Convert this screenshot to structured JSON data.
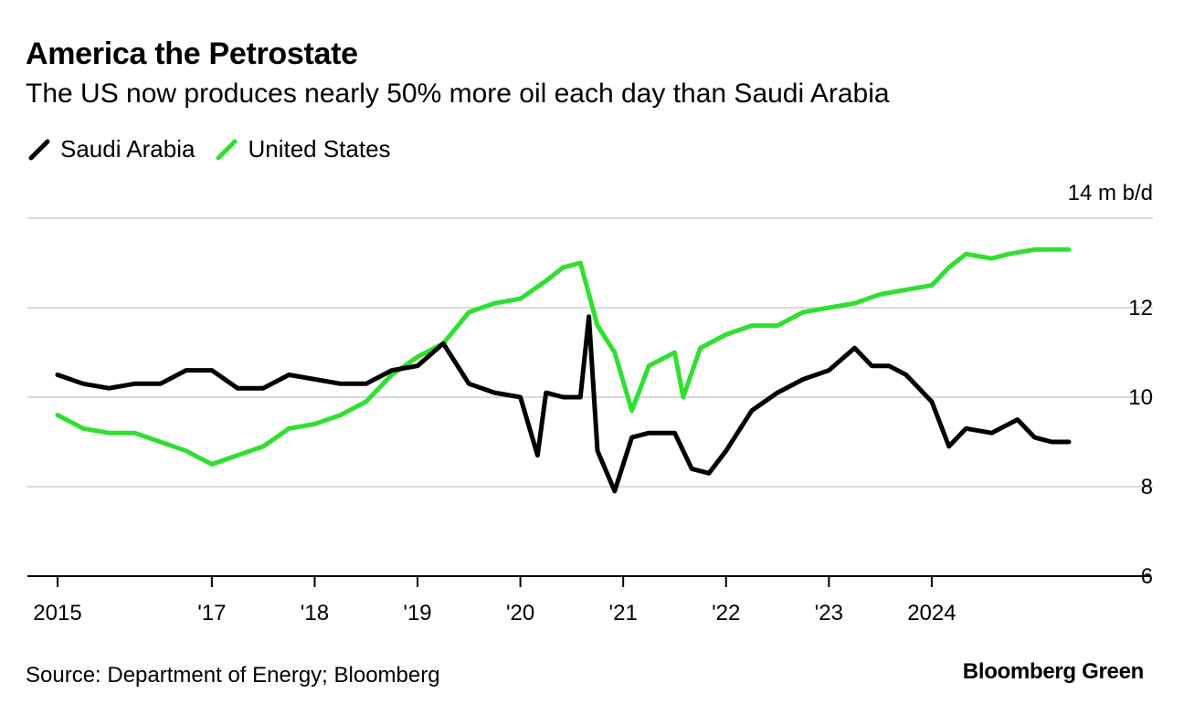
{
  "header": {
    "title": "America the Petrostate",
    "subtitle": "The US now produces nearly 50% more oil each day than Saudi Arabia"
  },
  "legend": [
    {
      "name": "Saudi Arabia",
      "color": "#000000"
    },
    {
      "name": "United States",
      "color": "#2fe031"
    }
  ],
  "footer": {
    "source": "Source: Department of Energy; Bloomberg",
    "brand": "Bloomberg Green"
  },
  "chart_data": {
    "type": "line",
    "title": "America the Petrostate",
    "subtitle": "The US now produces nearly 50% more oil each day than Saudi Arabia",
    "ylabel": "14 m b/d",
    "ylim": [
      6,
      14
    ],
    "yticks": [
      6,
      8,
      10,
      12
    ],
    "ytick_labels": [
      "6",
      "8",
      "10",
      "12"
    ],
    "xlim": [
      "2015-01",
      "2024-12"
    ],
    "xticks": [
      "2015-01",
      "2016-07",
      "2017-07",
      "2018-07",
      "2019-07",
      "2020-07",
      "2021-07",
      "2022-07",
      "2023-07"
    ],
    "xtick_labels": [
      "2015",
      "'17",
      "'18",
      "'19",
      "'20",
      "'21",
      "'22",
      "'23",
      "2024"
    ],
    "grid": true,
    "legend_position": "top-left",
    "series": [
      {
        "name": "Saudi Arabia",
        "color": "#000000",
        "points": [
          [
            "2015-01",
            10.5
          ],
          [
            "2015-04",
            10.3
          ],
          [
            "2015-07",
            10.2
          ],
          [
            "2015-10",
            10.3
          ],
          [
            "2016-01",
            10.3
          ],
          [
            "2016-04",
            10.6
          ],
          [
            "2016-07",
            10.6
          ],
          [
            "2016-10",
            10.2
          ],
          [
            "2017-01",
            10.2
          ],
          [
            "2017-04",
            10.5
          ],
          [
            "2017-07",
            10.4
          ],
          [
            "2017-10",
            10.3
          ],
          [
            "2018-01",
            10.3
          ],
          [
            "2018-04",
            10.6
          ],
          [
            "2018-07",
            10.7
          ],
          [
            "2018-10",
            11.2
          ],
          [
            "2019-01",
            10.3
          ],
          [
            "2019-04",
            10.1
          ],
          [
            "2019-07",
            10.0
          ],
          [
            "2019-09",
            8.7
          ],
          [
            "2019-10",
            10.1
          ],
          [
            "2019-12",
            10.0
          ],
          [
            "2020-02",
            10.0
          ],
          [
            "2020-03",
            11.8
          ],
          [
            "2020-04",
            8.8
          ],
          [
            "2020-06",
            7.9
          ],
          [
            "2020-08",
            9.1
          ],
          [
            "2020-10",
            9.2
          ],
          [
            "2021-01",
            9.2
          ],
          [
            "2021-03",
            8.4
          ],
          [
            "2021-05",
            8.3
          ],
          [
            "2021-07",
            8.8
          ],
          [
            "2021-10",
            9.7
          ],
          [
            "2022-01",
            10.1
          ],
          [
            "2022-04",
            10.4
          ],
          [
            "2022-07",
            10.6
          ],
          [
            "2022-10",
            11.1
          ],
          [
            "2022-12",
            10.7
          ],
          [
            "2023-02",
            10.7
          ],
          [
            "2023-04",
            10.5
          ],
          [
            "2023-07",
            9.9
          ],
          [
            "2023-09",
            8.9
          ],
          [
            "2023-11",
            9.3
          ],
          [
            "2024-02",
            9.2
          ],
          [
            "2024-05",
            9.5
          ],
          [
            "2024-07",
            9.1
          ],
          [
            "2024-09",
            9.0
          ],
          [
            "2024-11",
            9.0
          ]
        ]
      },
      {
        "name": "United States",
        "color": "#2fe031",
        "points": [
          [
            "2015-01",
            9.6
          ],
          [
            "2015-04",
            9.3
          ],
          [
            "2015-07",
            9.2
          ],
          [
            "2015-10",
            9.2
          ],
          [
            "2016-01",
            9.0
          ],
          [
            "2016-04",
            8.8
          ],
          [
            "2016-07",
            8.5
          ],
          [
            "2016-10",
            8.7
          ],
          [
            "2017-01",
            8.9
          ],
          [
            "2017-04",
            9.3
          ],
          [
            "2017-07",
            9.4
          ],
          [
            "2017-10",
            9.6
          ],
          [
            "2018-01",
            9.9
          ],
          [
            "2018-04",
            10.5
          ],
          [
            "2018-07",
            10.9
          ],
          [
            "2018-10",
            11.2
          ],
          [
            "2019-01",
            11.9
          ],
          [
            "2019-04",
            12.1
          ],
          [
            "2019-07",
            12.2
          ],
          [
            "2019-10",
            12.6
          ],
          [
            "2019-12",
            12.9
          ],
          [
            "2020-02",
            13.0
          ],
          [
            "2020-04",
            11.6
          ],
          [
            "2020-06",
            11.0
          ],
          [
            "2020-08",
            9.7
          ],
          [
            "2020-10",
            10.7
          ],
          [
            "2021-01",
            11.0
          ],
          [
            "2021-02",
            10.0
          ],
          [
            "2021-04",
            11.1
          ],
          [
            "2021-07",
            11.4
          ],
          [
            "2021-10",
            11.6
          ],
          [
            "2022-01",
            11.6
          ],
          [
            "2022-04",
            11.9
          ],
          [
            "2022-07",
            12.0
          ],
          [
            "2022-10",
            12.1
          ],
          [
            "2023-01",
            12.3
          ],
          [
            "2023-04",
            12.4
          ],
          [
            "2023-07",
            12.5
          ],
          [
            "2023-09",
            12.9
          ],
          [
            "2023-11",
            13.2
          ],
          [
            "2024-02",
            13.1
          ],
          [
            "2024-04",
            13.2
          ],
          [
            "2024-07",
            13.3
          ],
          [
            "2024-11",
            13.3
          ]
        ]
      }
    ]
  }
}
